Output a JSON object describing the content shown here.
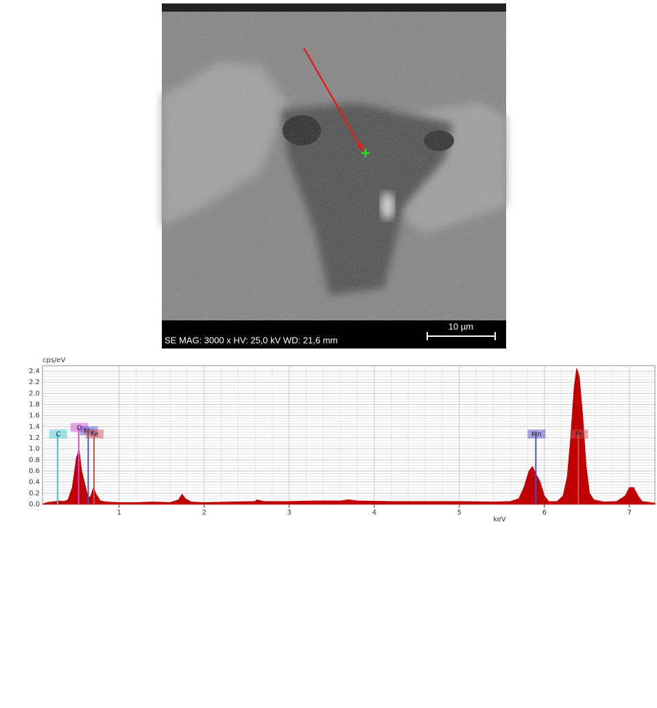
{
  "image": {
    "caption": "SE  MAG: 3000 x  HV: 25,0 kV  WD: 21,6 mm",
    "scale_bar": "10 µm"
  },
  "chart_data": {
    "type": "area",
    "color": "#c00000",
    "xlabel": "keV",
    "ylabel": "cps/eV",
    "x": [
      0.1,
      0.15,
      0.2,
      0.25,
      0.3,
      0.35,
      0.4,
      0.45,
      0.5,
      0.53,
      0.56,
      0.6,
      0.63,
      0.66,
      0.7,
      0.73,
      0.78,
      0.85,
      1.0,
      1.2,
      1.4,
      1.6,
      1.7,
      1.74,
      1.78,
      1.85,
      2.0,
      2.3,
      2.6,
      2.62,
      2.7,
      3.0,
      3.3,
      3.6,
      3.7,
      3.8,
      4.2,
      4.6,
      5.0,
      5.4,
      5.6,
      5.7,
      5.76,
      5.82,
      5.86,
      5.9,
      5.95,
      6.0,
      6.05,
      6.15,
      6.22,
      6.27,
      6.31,
      6.35,
      6.38,
      6.41,
      6.45,
      6.49,
      6.53,
      6.58,
      6.7,
      6.85,
      6.95,
      7.0,
      7.05,
      7.1,
      7.15,
      7.3
    ],
    "values": [
      0,
      0.03,
      0.04,
      0.05,
      0.06,
      0.05,
      0.08,
      0.3,
      0.85,
      0.97,
      0.6,
      0.35,
      0.15,
      0.12,
      0.3,
      0.18,
      0.06,
      0.04,
      0.03,
      0.03,
      0.04,
      0.03,
      0.08,
      0.18,
      0.1,
      0.04,
      0.03,
      0.04,
      0.05,
      0.08,
      0.05,
      0.05,
      0.06,
      0.06,
      0.08,
      0.06,
      0.05,
      0.05,
      0.05,
      0.04,
      0.05,
      0.1,
      0.3,
      0.6,
      0.68,
      0.55,
      0.4,
      0.15,
      0.05,
      0.05,
      0.15,
      0.5,
      1.2,
      2.1,
      2.45,
      2.3,
      1.6,
      0.7,
      0.2,
      0.08,
      0.04,
      0.05,
      0.15,
      0.3,
      0.3,
      0.15,
      0.05,
      0.02
    ],
    "xlim": [
      0.1,
      7.3
    ],
    "ylim": [
      0,
      2.5
    ],
    "xticks": [
      1,
      2,
      3,
      4,
      5,
      6,
      7
    ],
    "yticks": [
      {
        "value": 0,
        "label": "0.0"
      },
      {
        "value": 0.2,
        "label": "0.2"
      },
      {
        "value": 0.4,
        "label": "0.4"
      },
      {
        "value": 0.6,
        "label": "0.6"
      },
      {
        "value": 0.8,
        "label": "0.8"
      },
      {
        "value": 1,
        "label": "1.0"
      },
      {
        "value": 1.2,
        "label": "1.2"
      },
      {
        "value": 1.4,
        "label": "1.4"
      },
      {
        "value": 1.6,
        "label": "1.6"
      },
      {
        "value": 1.8,
        "label": "1.8"
      },
      {
        "value": 2,
        "label": "2.0"
      },
      {
        "value": 2.2,
        "label": "2.2"
      },
      {
        "value": 2.4,
        "label": "2.4"
      }
    ],
    "grid": true,
    "markers": [
      {
        "label": "C",
        "x": 0.277,
        "color": "#40c8d8"
      },
      {
        "label": "O",
        "x": 0.525,
        "color": "#d050d0"
      },
      {
        "label": "Mn",
        "x": 0.637,
        "color": "#5050c8"
      },
      {
        "label": "Fe",
        "x": 0.705,
        "color": "#d05050"
      },
      {
        "label": "Mn",
        "x": 5.9,
        "color": "#5050c8"
      },
      {
        "label": "Fe",
        "x": 6.4,
        "color": "#d05050"
      }
    ]
  }
}
